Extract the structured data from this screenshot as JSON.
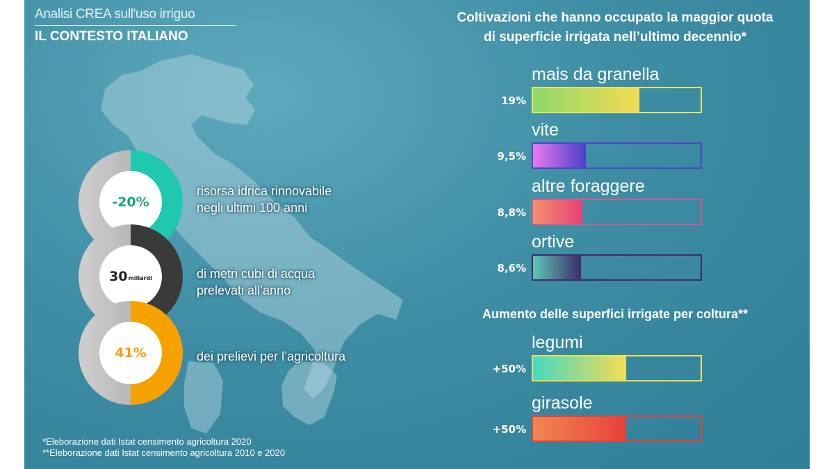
{
  "header": {
    "subtitle": "Analisi CREA sull'uso irriguo",
    "title": "IL CONTESTO ITALIANO"
  },
  "stats": [
    {
      "value": "-20%",
      "value_small": "",
      "text_lines": [
        "risorsa idrica rinnovabile",
        "negli ultimi 100 anni"
      ],
      "color": "#1fc8ae",
      "value_color": "#1aa87a"
    },
    {
      "value": "30",
      "value_small": "miliardi",
      "text_lines": [
        "di metri cubi di acqua",
        "prelevati all’anno"
      ],
      "color": "#3a3a3a",
      "value_color": "#222222"
    },
    {
      "value": "41%",
      "value_small": "",
      "text_lines": [
        "dei prelievi per l’agricoltura"
      ],
      "color": "#f5a100",
      "value_color": "#f5a100"
    }
  ],
  "chart_data": [
    {
      "type": "bar",
      "title": "Coltivazioni che hanno occupato la maggior quota di superficie irrigata nell’ultimo decennio*",
      "title_lines": [
        "Coltivazioni che hanno occupato la maggior quota",
        "di superficie irrigata nell’ultimo decennio*"
      ],
      "categories": [
        "mais da granella",
        "vite",
        "altre foraggere",
        "ortive"
      ],
      "values": [
        19,
        9.5,
        8.8,
        8.6
      ],
      "labels": [
        "19%",
        "9,5%",
        "8,8%",
        "8,6%"
      ],
      "xlim": [
        0,
        30
      ],
      "unit": "%",
      "gradients": [
        [
          "#8ed86a",
          "#f4dc52"
        ],
        [
          "#e87af0",
          "#4a3fc8"
        ],
        [
          "#f4906a",
          "#e8407a"
        ],
        [
          "#5ec8b4",
          "#3c2c6a"
        ]
      ],
      "borders": [
        "#e8e45a",
        "#4a48c8",
        "#d85a8a",
        "#3c2c6a"
      ]
    },
    {
      "type": "bar",
      "title": "Aumento delle superfici irrigate per coltura**",
      "categories": [
        "legumi",
        "girasole"
      ],
      "values": [
        50,
        50
      ],
      "labels": [
        "+50%",
        "+50%"
      ],
      "xlim": [
        0,
        90
      ],
      "unit": "%",
      "gradients": [
        [
          "#48d8c0",
          "#f4dc52"
        ],
        [
          "#f08850",
          "#e8403a"
        ]
      ],
      "borders": [
        "#e8e45a",
        "#e8403a"
      ]
    }
  ],
  "notes": [
    "*Eleborazione dati Istat censimento agricoltura 2020",
    "**Eleborazione dati Istat censimento agricoltura 2010 e 2020"
  ]
}
